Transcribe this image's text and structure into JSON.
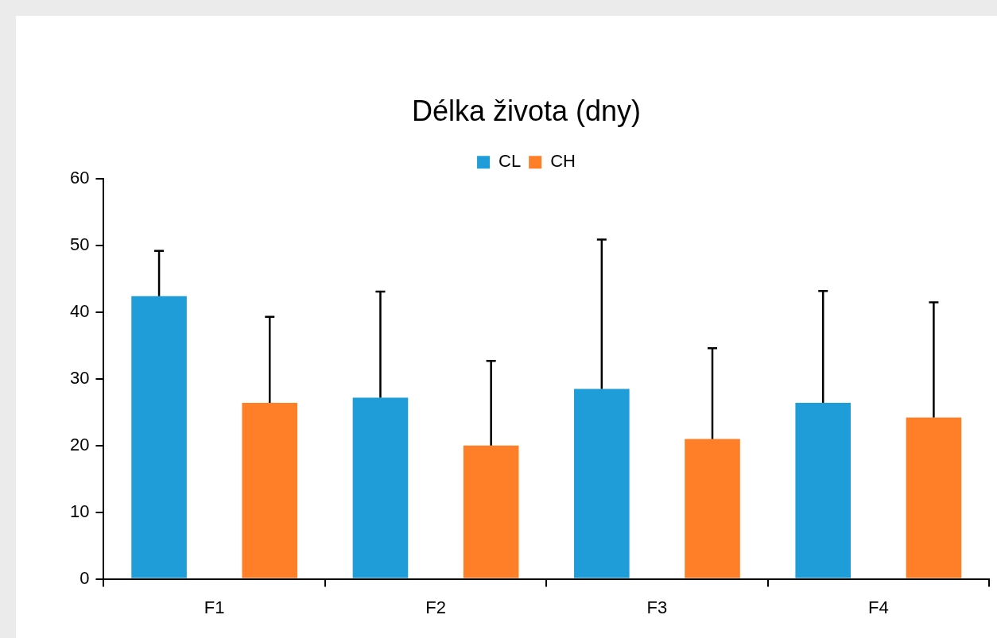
{
  "chart_data": {
    "type": "bar",
    "title": "Délka života (dny)",
    "categories": [
      "F1",
      "F2",
      "F3",
      "F4"
    ],
    "series": [
      {
        "name": "CL",
        "color": "#1f9dd9",
        "values": [
          42.4,
          27.2,
          28.5,
          26.4
        ],
        "errors": [
          [
            42.4,
            49.2
          ],
          [
            27.2,
            43.1
          ],
          [
            28.5,
            50.9
          ],
          [
            26.4,
            43.2
          ]
        ]
      },
      {
        "name": "CH",
        "color": "#fe7f27",
        "values": [
          26.4,
          20.0,
          21.0,
          24.2
        ],
        "errors": [
          [
            26.4,
            39.3
          ],
          [
            20.0,
            32.7
          ],
          [
            21.0,
            34.6
          ],
          [
            24.2,
            41.5
          ]
        ]
      }
    ],
    "ylim": [
      0,
      60
    ],
    "yticks": [
      0,
      10,
      20,
      30,
      40,
      50,
      60
    ],
    "grid": false,
    "legend": "top"
  }
}
